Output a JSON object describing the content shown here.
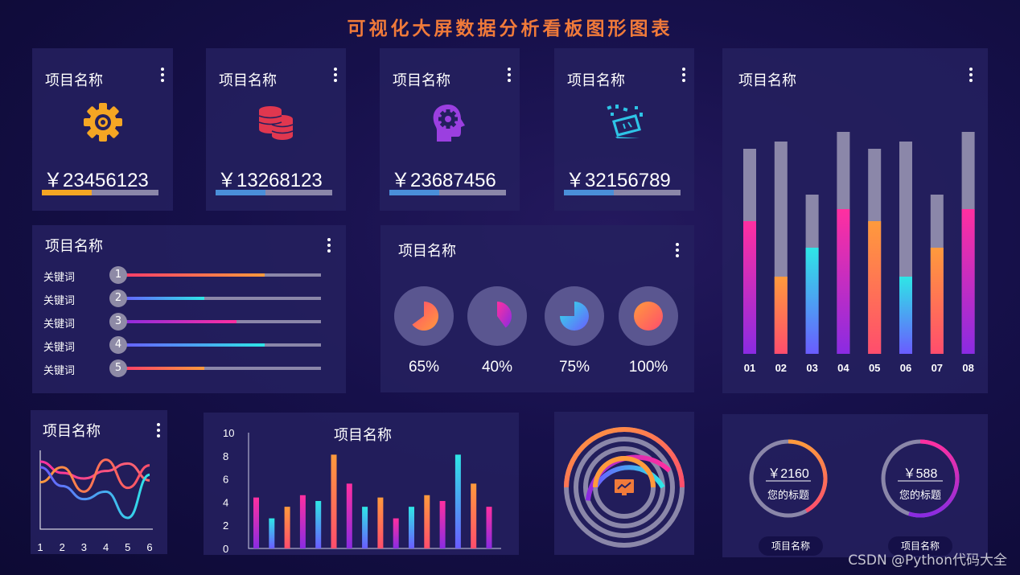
{
  "title": "可视化大屏数据分析看板图形图表",
  "stat_cards": [
    {
      "title": "项目名称",
      "icon": "gear-icon",
      "value": "￥23456123",
      "progress": 0.43,
      "color": "#f5a623"
    },
    {
      "title": "项目名称",
      "icon": "coins-icon",
      "value": "￥13268123",
      "progress": 0.43,
      "color": "#4a8fd9"
    },
    {
      "title": "项目名称",
      "icon": "head-gear-icon",
      "value": "￥23687456",
      "progress": 0.43,
      "color": "#4a8fd9"
    },
    {
      "title": "项目名称",
      "icon": "laptop-code-icon",
      "value": "￥32156789",
      "progress": 0.43,
      "color": "#4a8fd9"
    }
  ],
  "keywords_panel": {
    "title": "项目名称",
    "rows": [
      {
        "label": "关键词",
        "num": "1",
        "progress": 0.72,
        "from": "#ff3b6b",
        "to": "#ff9a3c"
      },
      {
        "label": "关键词",
        "num": "2",
        "progress": 0.42,
        "from": "#6a5cff",
        "to": "#2ee6e6"
      },
      {
        "label": "关键词",
        "num": "3",
        "progress": 0.58,
        "from": "#8a2be2",
        "to": "#ff2fa0"
      },
      {
        "label": "关键词",
        "num": "4",
        "progress": 0.72,
        "from": "#6a5cff",
        "to": "#2ee6e6"
      },
      {
        "label": "关键词",
        "num": "5",
        "progress": 0.42,
        "from": "#ff3b6b",
        "to": "#ff9a3c"
      }
    ]
  },
  "pie_panel": {
    "title": "项目名称",
    "pies": [
      {
        "pct": "65%",
        "value": 0.65,
        "from": "#ff4d6d",
        "to": "#ff9a3c"
      },
      {
        "pct": "40%",
        "value": 0.4,
        "from": "#ff2fa0",
        "to": "#8a2be2"
      },
      {
        "pct": "75%",
        "value": 0.75,
        "from": "#2ee6e6",
        "to": "#6a5cff"
      },
      {
        "pct": "100%",
        "value": 1.0,
        "from": "#ff9a3c",
        "to": "#ff4d6d"
      }
    ]
  },
  "bar_panel": {
    "title": "项目名称",
    "categories": [
      "01",
      "02",
      "03",
      "04",
      "05",
      "06",
      "07",
      "08"
    ],
    "totals": [
      0.85,
      0.88,
      0.66,
      0.92,
      0.85,
      0.88,
      0.66,
      0.92
    ],
    "values": [
      0.55,
      0.32,
      0.44,
      0.6,
      0.55,
      0.32,
      0.44,
      0.6
    ],
    "colors": [
      [
        "#ff2fa0",
        "#8a2be2"
      ],
      [
        "#ff9a3c",
        "#ff4d6d"
      ],
      [
        "#2ee6e6",
        "#6a5cff"
      ],
      [
        "#ff2fa0",
        "#8a2be2"
      ],
      [
        "#ff9a3c",
        "#ff4d6d"
      ],
      [
        "#2ee6e6",
        "#6a5cff"
      ],
      [
        "#ff9a3c",
        "#ff4d6d"
      ],
      [
        "#ff2fa0",
        "#8a2be2"
      ]
    ]
  },
  "line_panel": {
    "title": "项目名称",
    "x_ticks": [
      "1",
      "2",
      "3",
      "4",
      "5",
      "6"
    ]
  },
  "column_panel": {
    "title": "项目名称",
    "y_ticks": [
      "10",
      "8",
      "6",
      "4",
      "2",
      "0"
    ]
  },
  "gauges": [
    {
      "value": "￥2160",
      "label": "您的标题",
      "pill": "项目名称",
      "progress": 0.42,
      "from": "#ff9a3c",
      "to": "#ff4d6d"
    },
    {
      "value": "￥588",
      "label": "您的标题",
      "pill": "项目名称",
      "progress": 0.55,
      "from": "#ff2fa0",
      "to": "#8a2be2"
    }
  ],
  "watermark": "CSDN @Python代码大全",
  "chart_data": [
    {
      "type": "bar",
      "title": "项目名称",
      "categories": [
        "01",
        "02",
        "03",
        "04",
        "05",
        "06",
        "07",
        "08"
      ],
      "series": [
        {
          "values": [
            0.55,
            0.32,
            0.44,
            0.6,
            0.55,
            0.32,
            0.44,
            0.6
          ]
        },
        {
          "values": [
            0.85,
            0.88,
            0.66,
            0.92,
            0.85,
            0.88,
            0.66,
            0.92
          ]
        }
      ]
    },
    {
      "type": "line",
      "title": "项目名称",
      "x": [
        1,
        2,
        3,
        4,
        5,
        6
      ],
      "series": [
        {
          "values": [
            4.6,
            4.0,
            3.7,
            4.1,
            4.5,
            3.6
          ]
        },
        {
          "values": [
            3.5,
            4.3,
            3.0,
            4.7,
            3.2,
            4.4
          ]
        },
        {
          "values": [
            4.3,
            3.3,
            2.6,
            3.0,
            1.6,
            3.9
          ]
        }
      ]
    },
    {
      "type": "bar",
      "title": "项目名称",
      "ylim": [
        0,
        10
      ],
      "y_ticks": [
        0,
        2,
        4,
        6,
        8,
        10
      ],
      "values": [
        4.4,
        2.6,
        3.6,
        4.6,
        4.1,
        8.1,
        5.6,
        3.6,
        4.4,
        2.6,
        3.6,
        4.6,
        4.1,
        8.1,
        5.6,
        3.6
      ],
      "colors": [
        "#ff2fa0",
        "#2ee6e6",
        "#ff9a3c",
        "#ff2fa0",
        "#2ee6e6",
        "#ff9a3c",
        "#ff2fa0",
        "#2ee6e6",
        "#ff9a3c",
        "#ff2fa0",
        "#2ee6e6",
        "#ff9a3c",
        "#ff2fa0",
        "#2ee6e6",
        "#ff9a3c",
        "#ff2fa0"
      ]
    }
  ]
}
